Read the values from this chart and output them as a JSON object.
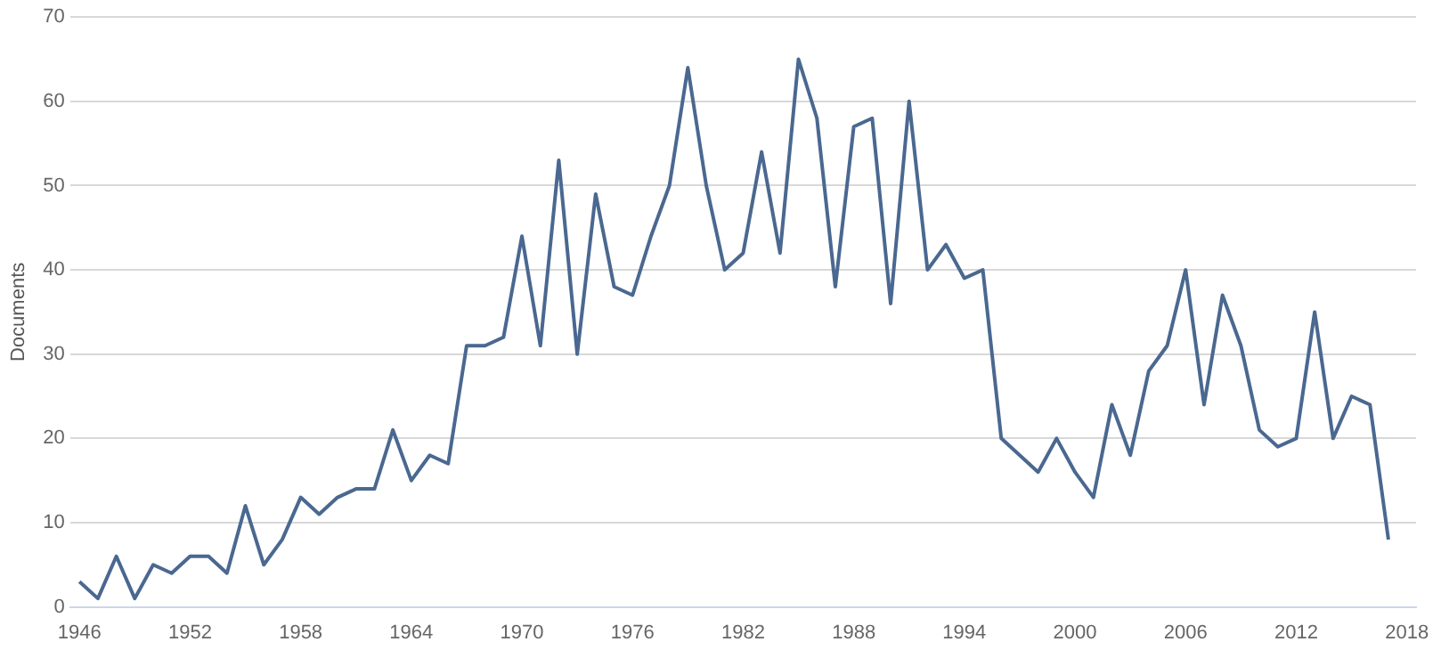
{
  "chart_data": {
    "type": "line",
    "ylabel": "Documents",
    "x": [
      1946,
      1947,
      1948,
      1949,
      1950,
      1951,
      1952,
      1953,
      1954,
      1955,
      1956,
      1957,
      1958,
      1959,
      1960,
      1961,
      1962,
      1963,
      1964,
      1965,
      1966,
      1967,
      1968,
      1969,
      1970,
      1971,
      1972,
      1973,
      1974,
      1975,
      1976,
      1977,
      1978,
      1979,
      1980,
      1981,
      1982,
      1983,
      1984,
      1985,
      1986,
      1987,
      1988,
      1989,
      1990,
      1991,
      1992,
      1993,
      1994,
      1995,
      1996,
      1997,
      1998,
      1999,
      2000,
      2001,
      2002,
      2003,
      2004,
      2005,
      2006,
      2007,
      2008,
      2009,
      2010,
      2011,
      2012,
      2013,
      2014,
      2015,
      2016,
      2017
    ],
    "series": [
      {
        "color": "#4a6890",
        "values": [
          3,
          1,
          6,
          1,
          5,
          4,
          6,
          6,
          4,
          12,
          5,
          8,
          13,
          11,
          13,
          14,
          14,
          21,
          15,
          18,
          17,
          31,
          31,
          32,
          44,
          31,
          53,
          30,
          49,
          38,
          37,
          44,
          50,
          64,
          50,
          40,
          42,
          54,
          42,
          65,
          58,
          38,
          57,
          58,
          36,
          60,
          40,
          43,
          39,
          40,
          20,
          18,
          16,
          20,
          16,
          13,
          24,
          18,
          28,
          31,
          40,
          24,
          37,
          31,
          21,
          19,
          20,
          35,
          20,
          25,
          24,
          8
        ]
      }
    ],
    "xlim": [
      1945.5,
      2018.5
    ],
    "xticks": [
      1946,
      1952,
      1958,
      1964,
      1970,
      1976,
      1982,
      1988,
      1994,
      2000,
      2006,
      2012,
      2018
    ],
    "ylim": [
      0,
      70
    ],
    "yticks": [
      0,
      10,
      20,
      30,
      40,
      50,
      60,
      70
    ],
    "grid": "y",
    "legend": false,
    "marker": "none",
    "line_style": "solid"
  }
}
